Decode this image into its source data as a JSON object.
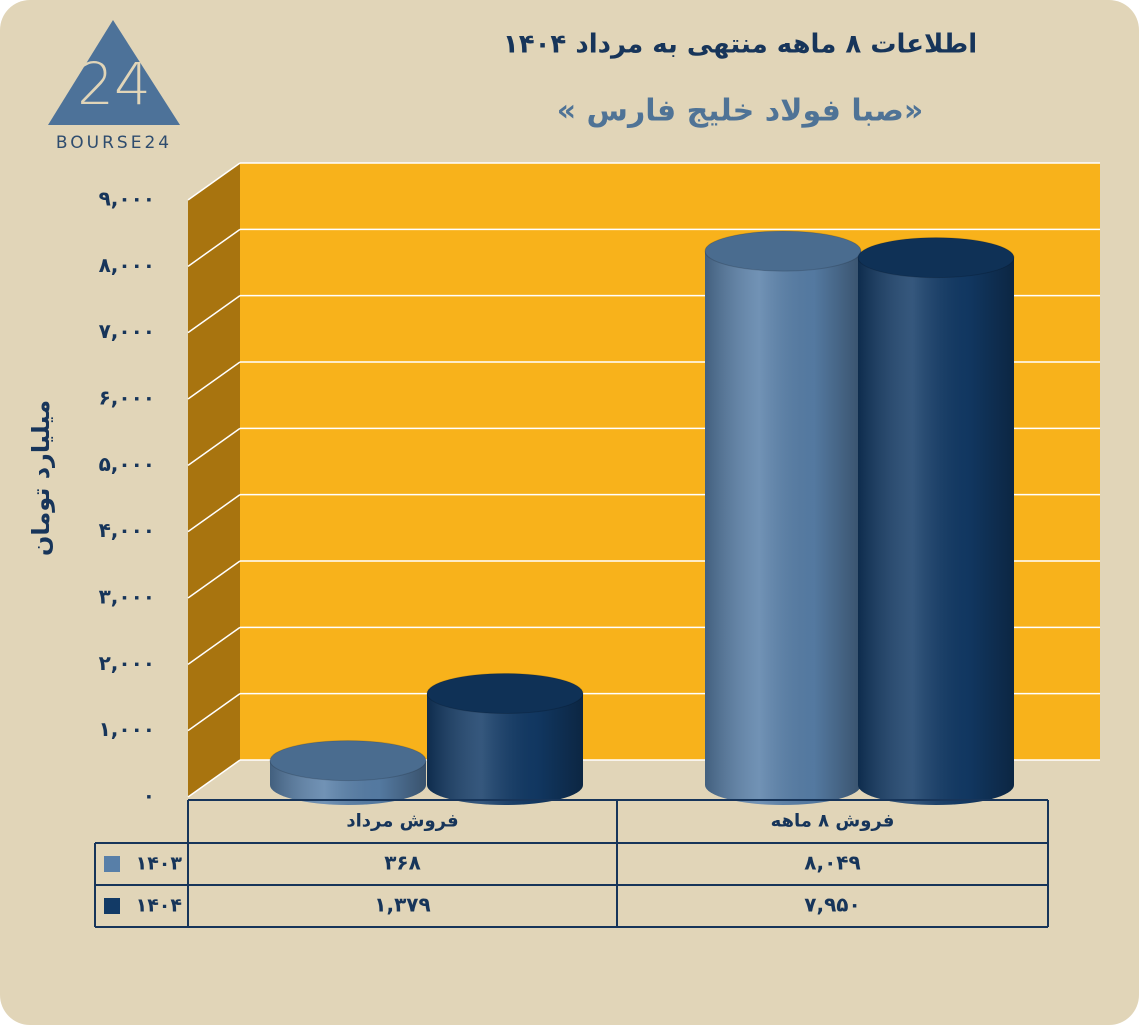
{
  "logo": {
    "mark": "24",
    "text": "BOURSE24"
  },
  "chart_data": {
    "type": "cylinder-bar",
    "title": "اطلاعات ۸ ماهه منتهی به مرداد ۱۴۰۴",
    "subtitle": "«صبا فولاد خلیج فارس »",
    "y_label": "میلیارد تومان",
    "categories": [
      "فروش مرداد",
      "فروش ۸ ماهه"
    ],
    "series": [
      {
        "name": "۱۴۰۳",
        "color": "#587fa8",
        "values": [
          368,
          8049
        ],
        "value_labels": [
          "۳۶۸",
          "۸,۰۴۹"
        ]
      },
      {
        "name": "۱۴۰۴",
        "color": "#123a66",
        "values": [
          1379,
          7950
        ],
        "value_labels": [
          "۱,۳۷۹",
          "۷,۹۵۰"
        ]
      }
    ],
    "ylim": [
      0,
      9000
    ],
    "yticks": [
      {
        "value": 0,
        "label": "۰"
      },
      {
        "value": 1000,
        "label": "۱,۰۰۰"
      },
      {
        "value": 2000,
        "label": "۲,۰۰۰"
      },
      {
        "value": 3000,
        "label": "۳,۰۰۰"
      },
      {
        "value": 4000,
        "label": "۴,۰۰۰"
      },
      {
        "value": 5000,
        "label": "۵,۰۰۰"
      },
      {
        "value": 6000,
        "label": "۶,۰۰۰"
      },
      {
        "value": 7000,
        "label": "۷,۰۰۰"
      },
      {
        "value": 8000,
        "label": "۸,۰۰۰"
      },
      {
        "value": 9000,
        "label": "۹,۰۰۰"
      }
    ],
    "grid": true,
    "wall_color": "#f8b21b",
    "side_wall_color": "#a8740f"
  }
}
